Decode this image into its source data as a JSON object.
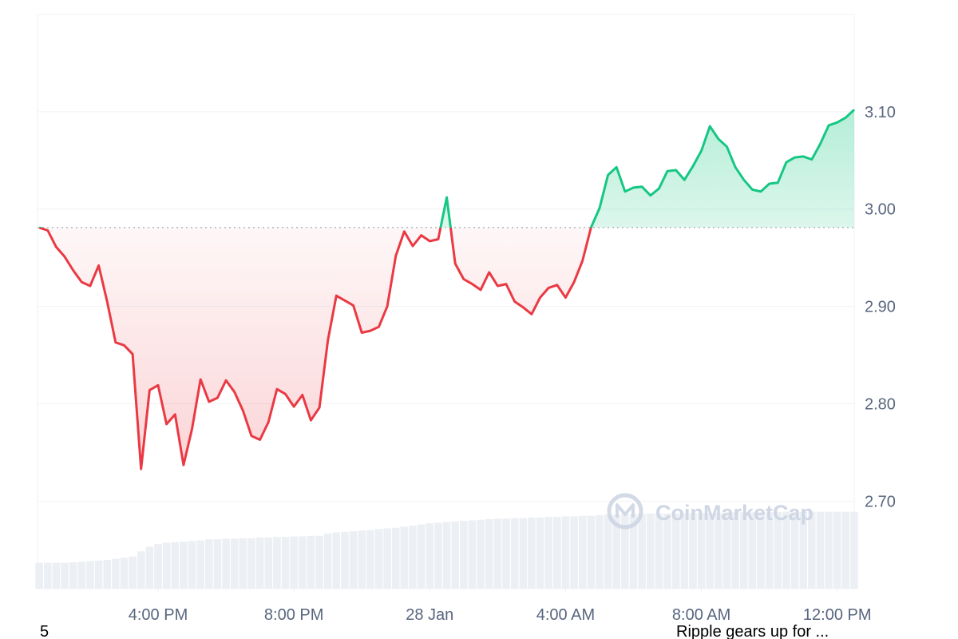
{
  "chart_data": {
    "type": "line",
    "x": [
      12.5,
      12.75,
      13,
      13.25,
      13.5,
      13.75,
      14,
      14.25,
      14.5,
      14.75,
      15,
      15.25,
      15.5,
      15.75,
      16,
      16.25,
      16.5,
      16.75,
      17,
      17.25,
      17.5,
      17.75,
      18,
      18.25,
      18.5,
      18.75,
      19,
      19.25,
      19.5,
      19.75,
      20,
      20.25,
      20.5,
      20.75,
      21,
      21.25,
      21.5,
      21.75,
      22,
      22.25,
      22.5,
      22.75,
      23,
      23.25,
      23.5,
      23.75,
      24,
      24.25,
      24.5,
      24.75,
      25,
      25.25,
      25.5,
      25.75,
      26,
      26.25,
      26.5,
      26.75,
      27,
      27.25,
      27.5,
      27.75,
      28,
      28.25,
      28.5,
      28.75,
      29,
      29.25,
      29.5,
      29.75,
      30,
      30.25,
      30.5,
      30.75,
      31,
      31.25,
      31.5,
      31.75,
      32,
      32.25,
      32.5,
      32.75,
      33,
      33.25,
      33.5,
      33.75,
      34,
      34.25,
      34.5,
      34.75,
      35,
      35.25,
      35.5,
      35.75,
      36,
      36.25,
      36.5
    ],
    "values": [
      2.981,
      2.978,
      2.961,
      2.951,
      2.937,
      2.925,
      2.921,
      2.942,
      2.905,
      2.863,
      2.86,
      2.851,
      2.733,
      2.814,
      2.819,
      2.779,
      2.789,
      2.737,
      2.774,
      2.825,
      2.802,
      2.806,
      2.824,
      2.812,
      2.793,
      2.767,
      2.763,
      2.781,
      2.815,
      2.81,
      2.797,
      2.809,
      2.783,
      2.796,
      2.865,
      2.911,
      2.906,
      2.901,
      2.873,
      2.875,
      2.879,
      2.9,
      2.952,
      2.977,
      2.962,
      2.973,
      2.967,
      2.969,
      3.012,
      2.944,
      2.928,
      2.923,
      2.917,
      2.935,
      2.921,
      2.923,
      2.905,
      2.899,
      2.892,
      2.909,
      2.919,
      2.922,
      2.909,
      2.925,
      2.947,
      2.981,
      3.001,
      3.035,
      3.043,
      3.018,
      3.022,
      3.023,
      3.014,
      3.021,
      3.039,
      3.04,
      3.03,
      3.044,
      3.06,
      3.085,
      3.072,
      3.064,
      3.043,
      3.03,
      3.02,
      3.018,
      3.026,
      3.027,
      3.048,
      3.053,
      3.054,
      3.051,
      3.067,
      3.086,
      3.089,
      3.094,
      3.102
    ],
    "volume": [
      4.5,
      4.5,
      4.5,
      4.5,
      4.6,
      4.7,
      4.8,
      4.9,
      5.0,
      5.2,
      5.4,
      5.6,
      6.5,
      7.3,
      7.8,
      8.0,
      8.1,
      8.2,
      8.3,
      8.4,
      8.6,
      8.6,
      8.7,
      8.7,
      8.8,
      8.8,
      8.9,
      8.9,
      9.0,
      9.0,
      9.1,
      9.1,
      9.2,
      9.2,
      9.6,
      9.8,
      9.9,
      10.0,
      10.1,
      10.2,
      10.4,
      10.5,
      10.6,
      10.8,
      11.0,
      11.2,
      11.4,
      11.5,
      11.6,
      11.7,
      11.8,
      11.9,
      12.0,
      12.1,
      12.2,
      12.2,
      12.3,
      12.3,
      12.4,
      12.4,
      12.5,
      12.5,
      12.6,
      12.6,
      12.7,
      12.7,
      12.8,
      12.9,
      12.9,
      13.0,
      13.0,
      13.0,
      13.1,
      13.1,
      13.1,
      13.1,
      13.2,
      13.2,
      13.2,
      13.2,
      13.2,
      13.3,
      13.3,
      13.3,
      13.3,
      13.3,
      13.3,
      13.4,
      13.4,
      13.4,
      13.4,
      13.4,
      13.4,
      13.4,
      13.4,
      13.4,
      13.4
    ],
    "volume_lim": [
      0,
      100
    ],
    "volume_color": "#eceff3",
    "baseline": 2.981,
    "color_up": "#16c784",
    "color_down": "#ea3943",
    "xlim": [
      12.45,
      36.5
    ],
    "xticks": [
      {
        "value": 16,
        "label": "4:00 PM"
      },
      {
        "value": 20,
        "label": "8:00 PM"
      },
      {
        "value": 24,
        "label": "28 Jan"
      },
      {
        "value": 28,
        "label": "4:00 AM"
      },
      {
        "value": 32,
        "label": "8:00 AM"
      },
      {
        "value": 36,
        "label": "12:00 PM"
      }
    ],
    "ylim": [
      2.61,
      3.2
    ],
    "yticks": [
      {
        "value": 2.7,
        "label": "2.70"
      },
      {
        "value": 2.8,
        "label": "2.80"
      },
      {
        "value": 2.9,
        "label": "2.90"
      },
      {
        "value": 3.0,
        "label": "3.00"
      },
      {
        "value": 3.1,
        "label": "3.10"
      }
    ],
    "grid": true,
    "watermark": "CoinMarketCap"
  },
  "footer": {
    "left": "5",
    "right": "Ripple gears up for ..."
  }
}
